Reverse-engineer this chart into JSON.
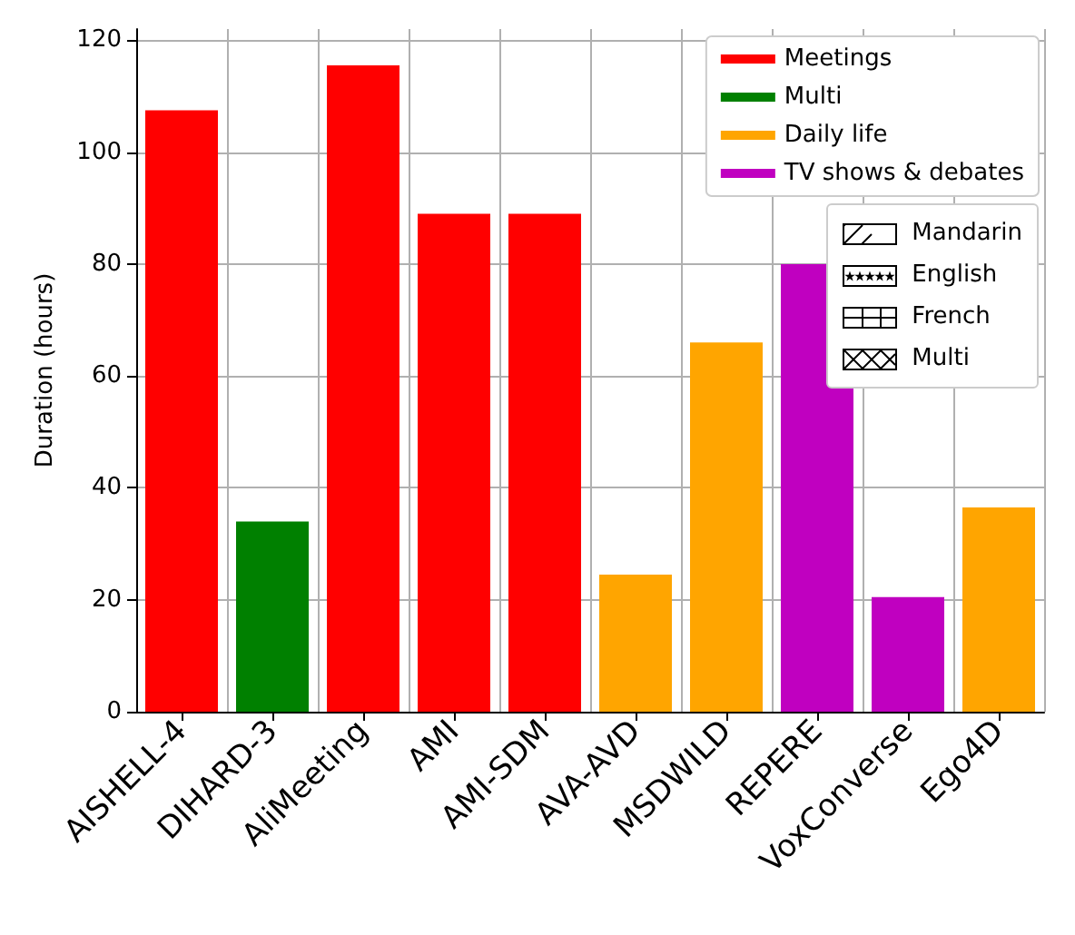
{
  "chart_data": {
    "type": "bar",
    "ylabel": "Duration (hours)",
    "categories": [
      "AISHELL-4",
      "DIHARD-3",
      "AliMeeting",
      "AMI",
      "AMI-SDM",
      "AVA-AVD",
      "MSDWILD",
      "REPERE",
      "VoxConverse",
      "Ego4D"
    ],
    "series": [
      {
        "name": "Meetings",
        "color": "#ff0000",
        "values": [
          107.5,
          null,
          115.5,
          89,
          89,
          null,
          null,
          null,
          null,
          null
        ]
      },
      {
        "name": "Multi",
        "color": "#008000",
        "values": [
          null,
          34,
          null,
          null,
          null,
          null,
          null,
          null,
          null,
          null
        ]
      },
      {
        "name": "Daily life",
        "color": "#ffa500",
        "values": [
          null,
          null,
          null,
          null,
          null,
          24.5,
          66,
          null,
          null,
          36.5
        ]
      },
      {
        "name": "TV shows & debates",
        "color": "#c000c0",
        "values": [
          null,
          null,
          null,
          null,
          null,
          null,
          null,
          80,
          20.5,
          null
        ]
      }
    ],
    "ylim": [
      0,
      122
    ],
    "yticks": [
      0,
      20,
      40,
      60,
      80,
      100,
      120
    ],
    "grid": true,
    "legend": "top right",
    "annotations": [
      "Mandarin",
      "English",
      "French",
      "Multi"
    ]
  }
}
